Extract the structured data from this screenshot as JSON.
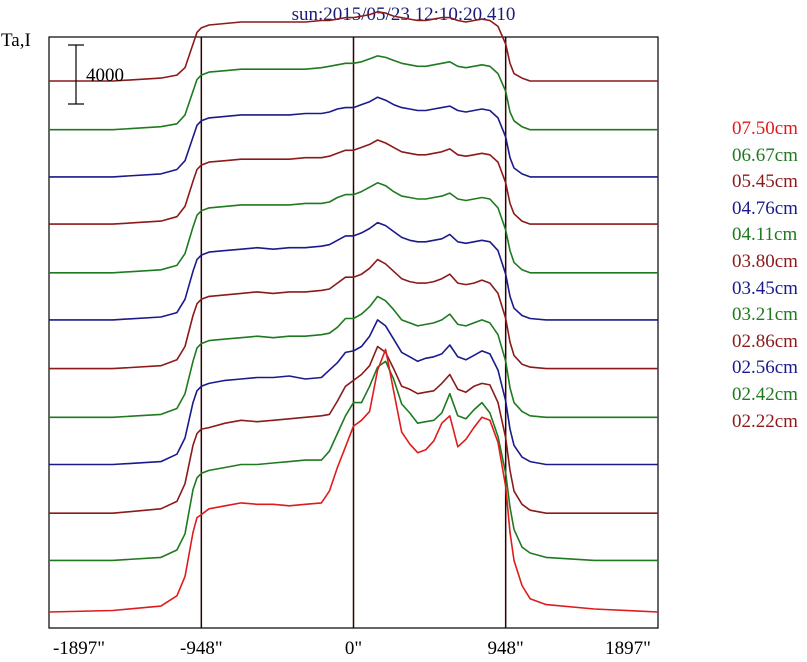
{
  "chart_data": {
    "type": "line",
    "title": "sun:2015/05/23 12:10:20.410",
    "ylabel": "Ta,I",
    "xlabel": "",
    "scale_bar_label": "4000",
    "x_ticks": [
      {
        "value": -1897,
        "label": "-1897\""
      },
      {
        "value": -948,
        "label": "-948\""
      },
      {
        "value": 0,
        "label": "0\""
      },
      {
        "value": 948,
        "label": "948\""
      },
      {
        "value": 1897,
        "label": "1897\""
      }
    ],
    "xlim": [
      -1897,
      1897
    ],
    "vertical_lines": [
      -948,
      0,
      948
    ],
    "x": [
      -1897,
      -1500,
      -1200,
      -1100,
      -1050,
      -1000,
      -975,
      -948,
      -900,
      -800,
      -700,
      -600,
      -500,
      -400,
      -300,
      -200,
      -150,
      -100,
      -50,
      0,
      50,
      100,
      150,
      200,
      250,
      300,
      350,
      400,
      450,
      500,
      550,
      600,
      650,
      700,
      750,
      800,
      850,
      900,
      948,
      975,
      1000,
      1050,
      1100,
      1200,
      1500,
      1897
    ],
    "series": [
      {
        "name": "07.50cm",
        "color": "#e01b1b",
        "offset": 0,
        "values": [
          0,
          100,
          400,
          1100,
          2400,
          5400,
          6400,
          6600,
          7000,
          7200,
          7400,
          7300,
          7300,
          7200,
          7300,
          7400,
          8200,
          9800,
          11200,
          12600,
          13000,
          13600,
          16400,
          17800,
          15000,
          12200,
          11400,
          10800,
          11000,
          11600,
          12800,
          13300,
          11200,
          11700,
          12500,
          13200,
          13000,
          11500,
          8500,
          5400,
          3500,
          1800,
          900,
          500,
          200,
          0
        ]
      },
      {
        "name": "06.67cm",
        "color": "#1f7a1f",
        "offset": 3500,
        "values": [
          0,
          0,
          200,
          700,
          1800,
          4800,
          5600,
          5900,
          6100,
          6300,
          6500,
          6500,
          6600,
          6700,
          6800,
          6800,
          7400,
          8600,
          9800,
          10700,
          10700,
          11800,
          13100,
          13500,
          12300,
          10600,
          10000,
          9300,
          9400,
          9500,
          10000,
          11300,
          9800,
          9600,
          10200,
          10700,
          10000,
          8400,
          5900,
          3600,
          2100,
          900,
          500,
          200,
          0,
          0
        ]
      },
      {
        "name": "05.45cm",
        "color": "#8b1a1a",
        "offset": 6700,
        "values": [
          0,
          0,
          300,
          800,
          2000,
          4600,
          5400,
          5700,
          5800,
          6100,
          6300,
          6200,
          6300,
          6400,
          6500,
          6600,
          6700,
          7600,
          8600,
          9000,
          9400,
          10000,
          11300,
          10900,
          9800,
          8600,
          8400,
          8100,
          8200,
          8300,
          8800,
          9400,
          8400,
          8200,
          8600,
          8800,
          8700,
          7500,
          5100,
          2900,
          1500,
          600,
          200,
          0,
          0,
          0
        ]
      },
      {
        "name": "04.76cm",
        "color": "#1a1a8b",
        "offset": 10000,
        "values": [
          0,
          0,
          200,
          700,
          1800,
          4200,
          5000,
          5300,
          5500,
          5700,
          5800,
          5900,
          5900,
          6000,
          5800,
          5900,
          6400,
          6900,
          7600,
          7700,
          8000,
          8700,
          9800,
          9400,
          8500,
          7600,
          7300,
          7000,
          7200,
          7300,
          7500,
          8100,
          7300,
          7100,
          7400,
          7700,
          7500,
          6400,
          4300,
          2400,
          1300,
          500,
          200,
          0,
          0,
          0
        ]
      },
      {
        "name": "04.11cm",
        "color": "#1f7a1f",
        "offset": 13200,
        "values": [
          0,
          0,
          200,
          600,
          1600,
          3800,
          4700,
          5000,
          5200,
          5300,
          5400,
          5500,
          5400,
          5500,
          5500,
          5600,
          5700,
          6100,
          6700,
          6700,
          7000,
          7500,
          8200,
          7900,
          7300,
          6600,
          6400,
          6200,
          6300,
          6400,
          6600,
          7000,
          6300,
          6200,
          6400,
          6600,
          6400,
          5600,
          3800,
          2000,
          1000,
          400,
          100,
          0,
          0,
          0
        ]
      },
      {
        "name": "03.80cm",
        "color": "#8b1a1a",
        "offset": 16500,
        "values": [
          0,
          0,
          200,
          600,
          1500,
          3600,
          4400,
          4700,
          4900,
          5000,
          5100,
          5200,
          5100,
          5200,
          5200,
          5300,
          5400,
          5800,
          6200,
          6200,
          6400,
          6800,
          7400,
          7100,
          6600,
          6100,
          5900,
          5800,
          5800,
          5900,
          6100,
          6400,
          5800,
          5700,
          5800,
          6000,
          5800,
          5100,
          3400,
          1800,
          900,
          300,
          100,
          0,
          0,
          0
        ]
      },
      {
        "name": "03.45cm",
        "color": "#1a1a8b",
        "offset": 19800,
        "values": [
          0,
          0,
          200,
          500,
          1400,
          3300,
          4100,
          4400,
          4600,
          4700,
          4800,
          4900,
          4800,
          4900,
          4900,
          5000,
          5100,
          5400,
          5700,
          5700,
          5900,
          6200,
          6600,
          6400,
          6000,
          5600,
          5400,
          5300,
          5300,
          5400,
          5500,
          5800,
          5300,
          5200,
          5300,
          5400,
          5300,
          4700,
          3100,
          1600,
          800,
          300,
          100,
          0,
          0,
          0
        ]
      },
      {
        "name": "03.21cm",
        "color": "#1f7a1f",
        "offset": 23000,
        "values": [
          0,
          0,
          200,
          500,
          1300,
          3100,
          3900,
          4200,
          4400,
          4500,
          4600,
          4600,
          4600,
          4600,
          4700,
          4700,
          4800,
          5100,
          5300,
          5300,
          5500,
          5800,
          6100,
          5900,
          5500,
          5200,
          5100,
          5000,
          5000,
          5100,
          5200,
          5400,
          5000,
          4900,
          5000,
          5100,
          5000,
          4400,
          2900,
          1500,
          700,
          200,
          0,
          0,
          0,
          0
        ]
      },
      {
        "name": "02.86cm",
        "color": "#8b1a1a",
        "offset": 26300,
        "values": [
          0,
          0,
          200,
          500,
          1200,
          2900,
          3700,
          4000,
          4200,
          4300,
          4400,
          4400,
          4400,
          4400,
          4500,
          4500,
          4600,
          4800,
          5000,
          5000,
          5200,
          5400,
          5700,
          5500,
          5200,
          4900,
          4800,
          4700,
          4700,
          4800,
          4900,
          5100,
          4700,
          4600,
          4700,
          4800,
          4700,
          4200,
          2800,
          1400,
          700,
          200,
          0,
          0,
          0,
          0
        ]
      },
      {
        "name": "02.56cm",
        "color": "#1a1a8b",
        "offset": 29500,
        "values": [
          0,
          0,
          200,
          500,
          1100,
          2700,
          3500,
          3800,
          4000,
          4100,
          4200,
          4200,
          4200,
          4200,
          4300,
          4300,
          4400,
          4600,
          4700,
          4700,
          4900,
          5100,
          5400,
          5200,
          4900,
          4700,
          4600,
          4500,
          4500,
          4600,
          4700,
          4800,
          4500,
          4400,
          4500,
          4600,
          4500,
          4000,
          2700,
          1300,
          600,
          200,
          0,
          0,
          0,
          0
        ]
      },
      {
        "name": "02.42cm",
        "color": "#1f7a1f",
        "offset": 32700,
        "values": [
          0,
          0,
          200,
          400,
          1000,
          2600,
          3400,
          3700,
          3900,
          4000,
          4100,
          4100,
          4100,
          4100,
          4100,
          4200,
          4300,
          4400,
          4500,
          4500,
          4600,
          4800,
          5000,
          4900,
          4700,
          4500,
          4400,
          4300,
          4300,
          4400,
          4500,
          4600,
          4300,
          4200,
          4300,
          4400,
          4300,
          3800,
          2600,
          1200,
          600,
          200,
          0,
          0,
          0,
          0
        ]
      },
      {
        "name": "02.22cm",
        "color": "#8b1a1a",
        "offset": 36000,
        "values": [
          0,
          0,
          200,
          400,
          900,
          2500,
          3300,
          3600,
          3800,
          3900,
          4000,
          4000,
          4000,
          4000,
          4000,
          4100,
          4100,
          4200,
          4300,
          4300,
          4400,
          4500,
          4700,
          4600,
          4400,
          4300,
          4200,
          4100,
          4100,
          4200,
          4300,
          4300,
          4100,
          4000,
          4100,
          4200,
          4100,
          3700,
          2500,
          1200,
          500,
          200,
          0,
          0,
          0,
          0
        ]
      }
    ],
    "grid": false,
    "legend_position": "right"
  },
  "colors": {
    "title": "#1a1a7a",
    "axes": "#000000",
    "vertical_lines": "#2a0000"
  }
}
